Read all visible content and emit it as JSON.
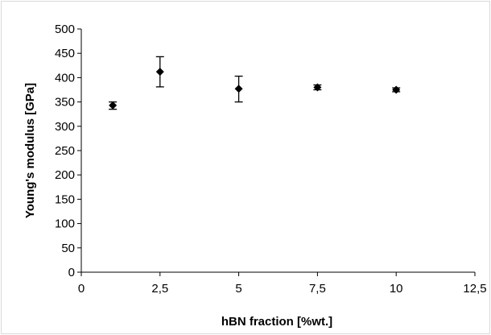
{
  "chart_data": {
    "type": "scatter",
    "xlabel": "hBN fraction [%wt.]",
    "ylabel": "Young's modulus [GPa]",
    "xlim": [
      0,
      12.5
    ],
    "ylim": [
      0,
      500
    ],
    "x_ticks": [
      0,
      2.5,
      5,
      7.5,
      10,
      12.5
    ],
    "x_tick_labels": [
      "0",
      "2,5",
      "5",
      "7,5",
      "10",
      "12,5"
    ],
    "y_ticks": [
      0,
      50,
      100,
      150,
      200,
      250,
      300,
      350,
      400,
      450,
      500
    ],
    "y_tick_labels": [
      "0",
      "50",
      "100",
      "150",
      "200",
      "250",
      "300",
      "350",
      "400",
      "450",
      "500"
    ],
    "grid": false,
    "legend": "none",
    "marker": "diamond",
    "error_bars": true,
    "series": [
      {
        "x": [
          1,
          2.5,
          5,
          7.5,
          10
        ],
        "y": [
          343,
          412,
          377,
          380,
          375
        ],
        "y_low": [
          335,
          381,
          350,
          375,
          371
        ],
        "y_high": [
          350,
          443,
          403,
          385,
          379
        ]
      }
    ]
  },
  "colors": {
    "axis": "#000000",
    "marker": "#000000",
    "border": "#d9d9d9",
    "background": "#ffffff"
  }
}
